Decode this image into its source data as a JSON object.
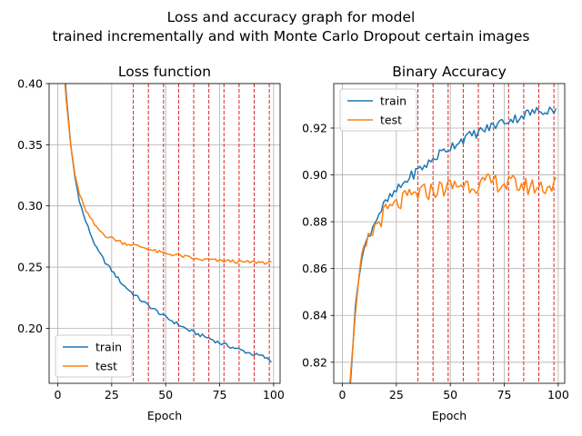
{
  "figure": {
    "suptitle_line1": "Loss and accuracy graph for model",
    "suptitle_line2": "trained incrementally and with Monte Carlo Dropout certain images"
  },
  "colors": {
    "train": "#1f77b4",
    "test": "#ff7f0e",
    "marker": "#d62728",
    "grid": "#b0b0b0"
  },
  "chart_data": [
    {
      "type": "line",
      "title": "Loss function",
      "xlabel": "Epoch",
      "ylabel": "",
      "xlim": [
        -4,
        103
      ],
      "ylim": [
        0.155,
        0.4
      ],
      "xticks": [
        0,
        25,
        50,
        75,
        100
      ],
      "yticks": [
        0.2,
        0.25,
        0.3,
        0.35,
        0.4
      ],
      "xtick_labels": [
        "0",
        "25",
        "50",
        "75",
        "100"
      ],
      "ytick_labels": [
        "0.20",
        "0.25",
        "0.30",
        "0.35",
        "0.40"
      ],
      "grid": true,
      "legend_position": "lower-left",
      "vlines": [
        35,
        42,
        49,
        56,
        63,
        70,
        77,
        84,
        91,
        98
      ],
      "series": [
        {
          "name": "train",
          "key": "train",
          "anchors": [
            [
              2,
              0.44
            ],
            [
              4,
              0.39
            ],
            [
              6,
              0.35
            ],
            [
              8,
              0.323
            ],
            [
              10,
              0.305
            ],
            [
              12,
              0.292
            ],
            [
              15,
              0.278
            ],
            [
              18,
              0.265
            ],
            [
              22,
              0.254
            ],
            [
              26,
              0.245
            ],
            [
              30,
              0.236
            ],
            [
              35,
              0.228
            ],
            [
              40,
              0.221
            ],
            [
              45,
              0.215
            ],
            [
              50,
              0.209
            ],
            [
              55,
              0.204
            ],
            [
              60,
              0.199
            ],
            [
              65,
              0.195
            ],
            [
              70,
              0.192
            ],
            [
              75,
              0.188
            ],
            [
              80,
              0.185
            ],
            [
              85,
              0.182
            ],
            [
              90,
              0.179
            ],
            [
              95,
              0.177
            ],
            [
              99,
              0.173
            ]
          ]
        },
        {
          "name": "test",
          "key": "test",
          "anchors": [
            [
              2,
              0.43
            ],
            [
              4,
              0.385
            ],
            [
              6,
              0.35
            ],
            [
              8,
              0.325
            ],
            [
              10,
              0.31
            ],
            [
              12,
              0.3
            ],
            [
              15,
              0.29
            ],
            [
              18,
              0.282
            ],
            [
              22,
              0.276
            ],
            [
              26,
              0.273
            ],
            [
              30,
              0.27
            ],
            [
              35,
              0.268
            ],
            [
              40,
              0.266
            ],
            [
              45,
              0.263
            ],
            [
              50,
              0.261
            ],
            [
              55,
              0.26
            ],
            [
              60,
              0.258
            ],
            [
              65,
              0.256
            ],
            [
              70,
              0.256
            ],
            [
              75,
              0.255
            ],
            [
              80,
              0.255
            ],
            [
              85,
              0.254
            ],
            [
              90,
              0.254
            ],
            [
              95,
              0.254
            ],
            [
              99,
              0.253
            ]
          ]
        }
      ]
    },
    {
      "type": "line",
      "title": "Binary Accuracy",
      "xlabel": "Epoch",
      "ylabel": "",
      "xlim": [
        -4,
        103
      ],
      "ylim": [
        0.811,
        0.939
      ],
      "xticks": [
        0,
        25,
        50,
        75,
        100
      ],
      "yticks": [
        0.82,
        0.84,
        0.86,
        0.88,
        0.9,
        0.92
      ],
      "xtick_labels": [
        "0",
        "25",
        "50",
        "75",
        "100"
      ],
      "ytick_labels": [
        "0.82",
        "0.84",
        "0.86",
        "0.88",
        "0.90",
        "0.92"
      ],
      "grid": true,
      "legend_position": "upper-left",
      "vlines": [
        35,
        42,
        49,
        56,
        63,
        70,
        77,
        84,
        91,
        98
      ],
      "series": [
        {
          "name": "train",
          "key": "train",
          "anchors": [
            [
              2,
              0.79
            ],
            [
              4,
              0.815
            ],
            [
              6,
              0.843
            ],
            [
              8,
              0.86
            ],
            [
              10,
              0.868
            ],
            [
              13,
              0.876
            ],
            [
              16,
              0.882
            ],
            [
              20,
              0.888
            ],
            [
              25,
              0.893
            ],
            [
              30,
              0.898
            ],
            [
              35,
              0.902
            ],
            [
              40,
              0.905
            ],
            [
              45,
              0.909
            ],
            [
              50,
              0.912
            ],
            [
              55,
              0.915
            ],
            [
              60,
              0.917
            ],
            [
              65,
              0.919
            ],
            [
              70,
              0.921
            ],
            [
              75,
              0.923
            ],
            [
              80,
              0.924
            ],
            [
              85,
              0.926
            ],
            [
              90,
              0.927
            ],
            [
              95,
              0.928
            ],
            [
              99,
              0.928
            ]
          ]
        },
        {
          "name": "test",
          "key": "test",
          "anchors": [
            [
              2,
              0.79
            ],
            [
              4,
              0.818
            ],
            [
              6,
              0.84
            ],
            [
              8,
              0.858
            ],
            [
              10,
              0.867
            ],
            [
              13,
              0.874
            ],
            [
              16,
              0.879
            ],
            [
              20,
              0.884
            ],
            [
              25,
              0.887
            ],
            [
              30,
              0.89
            ],
            [
              35,
              0.892
            ],
            [
              40,
              0.893
            ],
            [
              45,
              0.894
            ],
            [
              50,
              0.895
            ],
            [
              55,
              0.896
            ],
            [
              60,
              0.896
            ],
            [
              65,
              0.896
            ],
            [
              70,
              0.897
            ],
            [
              75,
              0.896
            ],
            [
              80,
              0.896
            ],
            [
              85,
              0.895
            ],
            [
              90,
              0.895
            ],
            [
              95,
              0.895
            ],
            [
              99,
              0.896
            ]
          ]
        }
      ]
    }
  ]
}
